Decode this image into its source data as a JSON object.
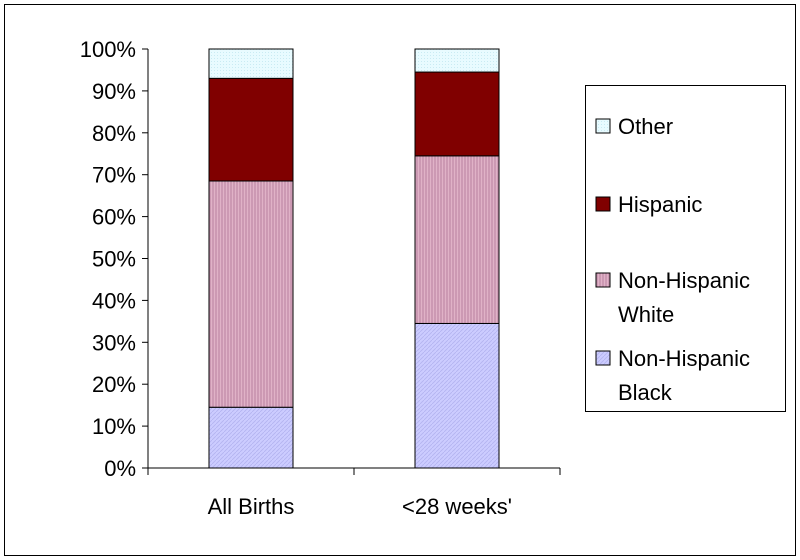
{
  "chart_data": {
    "type": "bar",
    "stacked": true,
    "percent": true,
    "title": "",
    "xlabel": "",
    "ylabel": "",
    "ylim": [
      0,
      100
    ],
    "yticks": [
      "0%",
      "10%",
      "20%",
      "30%",
      "40%",
      "50%",
      "60%",
      "70%",
      "80%",
      "90%",
      "100%"
    ],
    "categories": [
      "All Births",
      "<28 weeks'"
    ],
    "series": [
      {
        "name": "Non-Hispanic Black",
        "legend_lines": [
          "Non-Hispanic",
          "Black"
        ],
        "values": [
          14.5,
          34.5
        ],
        "color": "#ccccff",
        "pattern": "diagonal"
      },
      {
        "name": "Non-Hispanic White",
        "legend_lines": [
          "Non-Hispanic",
          "White"
        ],
        "values": [
          54,
          40
        ],
        "color": "#cc99b3",
        "pattern": "vertical"
      },
      {
        "name": "Hispanic",
        "legend_lines": [
          "Hispanic"
        ],
        "values": [
          24.5,
          20
        ],
        "color": "#800000",
        "pattern": "solid"
      },
      {
        "name": "Other",
        "legend_lines": [
          "Other"
        ],
        "values": [
          7,
          5.5
        ],
        "color": "#ddf6fb",
        "pattern": "dots"
      }
    ],
    "legend_position": "right",
    "legend_order": [
      "Other",
      "Hispanic",
      "Non-Hispanic White",
      "Non-Hispanic Black"
    ]
  }
}
